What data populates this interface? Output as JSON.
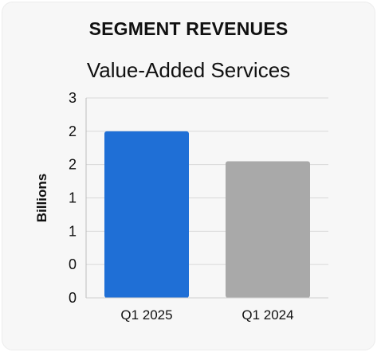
{
  "chart_data": {
    "type": "bar",
    "title": "SEGMENT REVENUES",
    "subtitle": "Value-Added Services",
    "ylabel": "Billions",
    "xlabel": "",
    "categories": [
      "Q1 2025",
      "Q1 2024"
    ],
    "values": [
      2.5,
      2.05
    ],
    "colors": [
      "#1f6fd6",
      "#a9a9a9"
    ],
    "ylim": [
      0,
      3
    ],
    "yticks": [
      0,
      0.5,
      1,
      1.5,
      2,
      2.5,
      3
    ],
    "ytick_labels": [
      "0",
      "0",
      "1",
      "1",
      "2",
      "2",
      "3"
    ],
    "grid": true,
    "legend": "none"
  }
}
